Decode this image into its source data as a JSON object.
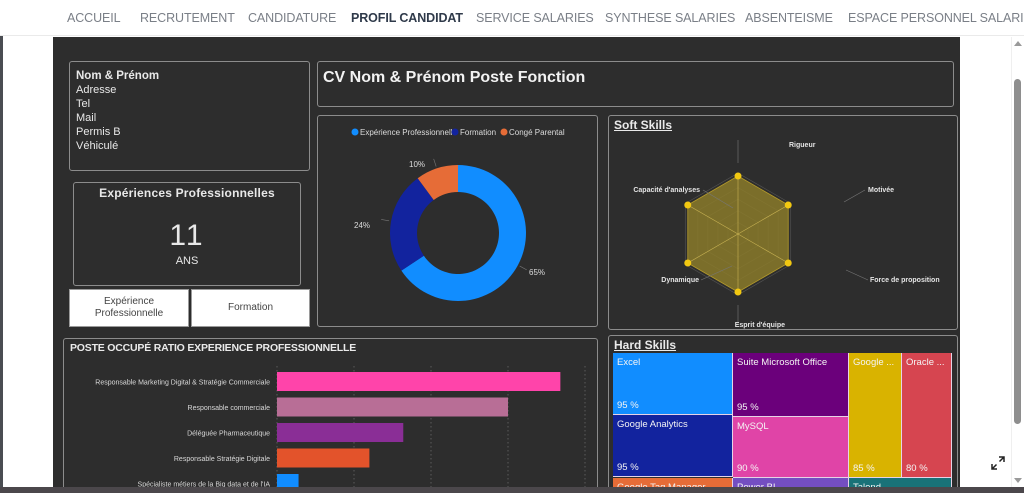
{
  "nav": {
    "items": [
      {
        "label": "ACCUEIL",
        "active": false
      },
      {
        "label": "RECRUTEMENT",
        "active": false
      },
      {
        "label": "CANDIDATURE",
        "active": false
      },
      {
        "label": "PROFIL CANDIDAT",
        "active": true
      },
      {
        "label": "SERVICE SALARIES",
        "active": false
      },
      {
        "label": "SYNTHESE SALARIES",
        "active": false
      },
      {
        "label": "ABSENTEISME",
        "active": false
      },
      {
        "label": "ESPACE PERSONNEL SALARIE",
        "active": false
      }
    ]
  },
  "contact": {
    "name": "Nom & Prénom",
    "lines": [
      "Adresse",
      "Tel",
      "Mail",
      "Permis B",
      "Véhiculé"
    ]
  },
  "experience_card": {
    "title": "Expériences Professionnelles",
    "value": "11",
    "unit": "ANS"
  },
  "buttons": {
    "experience": "Expérience Professionnelle",
    "formation": "Formation"
  },
  "cv_title": "CV Nom & Prénom Poste Fonction",
  "colors": {
    "canvas_bg": "#2d2d2d",
    "donut": [
      "#118dff",
      "#12239e",
      "#e66c37"
    ],
    "radar_fill": "#8a7a2a",
    "radar_dot": "#f2c811",
    "bars": [
      "#ff44aa",
      "#b86e96",
      "#8a2e96",
      "#e3532b",
      "#118dff"
    ]
  },
  "chart_data": [
    {
      "type": "pie",
      "variant": "donut",
      "legend_position": "top",
      "categories": [
        "Expérience Professionnelle",
        "Formation",
        "Congé Parental"
      ],
      "values": [
        65,
        24,
        10
      ],
      "labels": [
        "65%",
        "24%",
        "10%"
      ]
    },
    {
      "type": "radar",
      "title": "Soft Skills",
      "axes": [
        "Rigueur",
        "Motivée",
        "Force de proposition",
        "Esprit d'équipe",
        "Dynamique",
        "Capacité d'analyses"
      ],
      "values": [
        100,
        100,
        100,
        100,
        100,
        100
      ],
      "max": 100
    },
    {
      "type": "bar",
      "orientation": "horizontal",
      "title": "POSTE OCCUPÉ RATIO EXPERIENCE PROFESSIONNELLE",
      "categories": [
        "Responsable Marketing Digital & Stratégie Commerciale",
        "Responsable commerciale",
        "Déléguée Pharmaceutique",
        "Responsable Stratégie Digitale",
        "Spécialiste métiers de la Big data et de l'IA"
      ],
      "values": [
        0.92,
        0.75,
        0.41,
        0.3,
        0.07
      ],
      "xlim": [
        0,
        1
      ],
      "grid": true
    },
    {
      "type": "treemap",
      "title": "Hard Skills",
      "items": [
        {
          "label": "Excel",
          "value": "95 %"
        },
        {
          "label": "Google Analytics",
          "value": "95 %"
        },
        {
          "label": "Suite Microsoft Office",
          "value": "95 %"
        },
        {
          "label": "MySQL",
          "value": "90 %"
        },
        {
          "label": "Google ...",
          "value": "85 %"
        },
        {
          "label": "Oracle ...",
          "value": "80 %"
        },
        {
          "label": "Google Tag Manager",
          "value": ""
        },
        {
          "label": "Power BI",
          "value": ""
        },
        {
          "label": "Talend",
          "value": ""
        }
      ]
    }
  ]
}
